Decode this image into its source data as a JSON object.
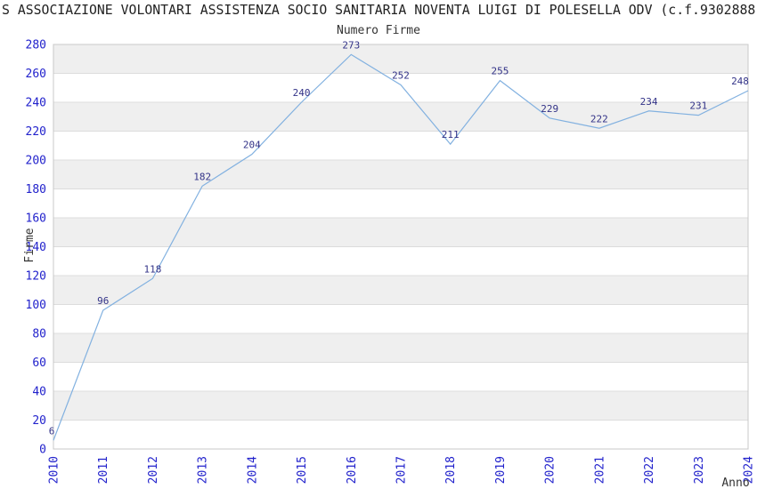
{
  "header": {
    "title": "S ASSOCIAZIONE VOLONTARI ASSISTENZA SOCIO SANITARIA NOVENTA LUIGI DI POLESELLA ODV (c.f.9302888"
  },
  "chart_data": {
    "type": "line",
    "title": "Numero Firme",
    "xlabel": "Anno",
    "ylabel": "Firme",
    "categories": [
      "2010",
      "2011",
      "2012",
      "2013",
      "2014",
      "2015",
      "2016",
      "2017",
      "2018",
      "2019",
      "2020",
      "2021",
      "2022",
      "2023",
      "2024"
    ],
    "values": [
      6,
      96,
      118,
      182,
      204,
      240,
      273,
      252,
      211,
      255,
      229,
      222,
      234,
      231,
      248
    ],
    "ylim": [
      0,
      280
    ],
    "ytick_step": 20,
    "grid": true,
    "legend_position": "none",
    "colors": {
      "line": "#82b1e0",
      "tick_label": "#2222cc",
      "data_label": "#333388",
      "band_fill": "#efefef",
      "gridline": "#dcdcdc",
      "plot_border": "#c8c8c8",
      "title_text": "#222222",
      "axis_text": "#333333"
    }
  }
}
